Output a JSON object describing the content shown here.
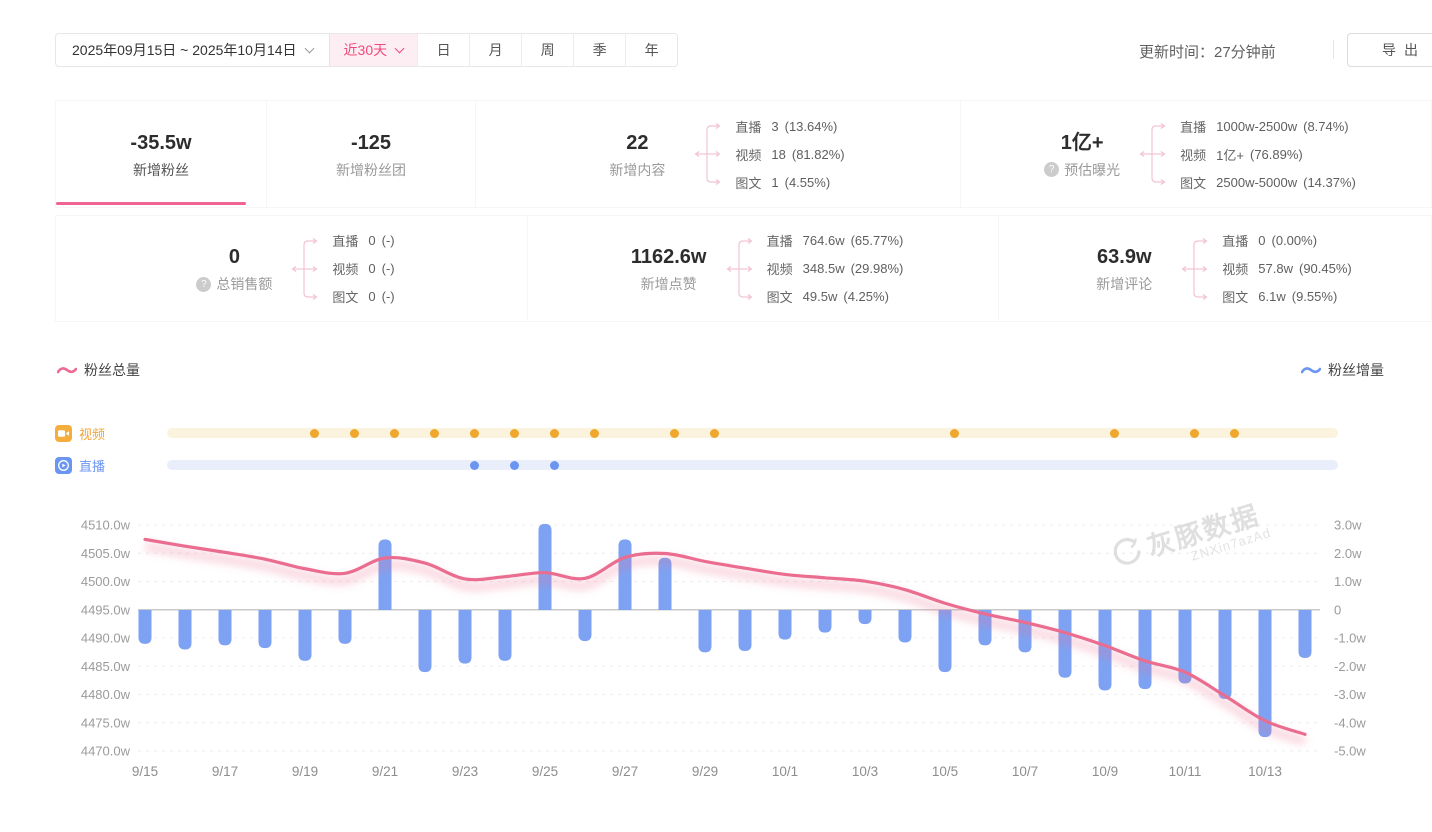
{
  "toolbar": {
    "date_range": "2025年09月15日 ~ 2025年10月14日",
    "quick_range": "近30天",
    "period_tabs": [
      "日",
      "月",
      "周",
      "季",
      "年"
    ],
    "update_time": "更新时间：27分钟前",
    "export_label": "导出"
  },
  "stat_cards": {
    "row1": [
      {
        "value": "-35.5w",
        "label": "新增粉丝",
        "active": true
      },
      {
        "value": "-125",
        "label": "新增粉丝团"
      },
      {
        "value": "22",
        "label": "新增内容",
        "breakdown": [
          {
            "name": "直播",
            "value": "3",
            "pct": "(13.64%)"
          },
          {
            "name": "视频",
            "value": "18",
            "pct": "(81.82%)"
          },
          {
            "name": "图文",
            "value": "1",
            "pct": "(4.55%)"
          }
        ]
      },
      {
        "value": "1亿+",
        "label": "预估曝光",
        "help": true,
        "breakdown": [
          {
            "name": "直播",
            "value": "1000w-2500w",
            "pct": "(8.74%)"
          },
          {
            "name": "视频",
            "value": "1亿+",
            "pct": "(76.89%)"
          },
          {
            "name": "图文",
            "value": "2500w-5000w",
            "pct": "(14.37%)"
          }
        ]
      }
    ],
    "row2": [
      {
        "value": "0",
        "label": "总销售额",
        "help": true,
        "breakdown": [
          {
            "name": "直播",
            "value": "0",
            "pct": "(-)"
          },
          {
            "name": "视频",
            "value": "0",
            "pct": "(-)"
          },
          {
            "name": "图文",
            "value": "0",
            "pct": "(-)"
          }
        ]
      },
      {
        "value": "1162.6w",
        "label": "新增点赞",
        "breakdown": [
          {
            "name": "直播",
            "value": "764.6w",
            "pct": "(65.77%)"
          },
          {
            "name": "视频",
            "value": "348.5w",
            "pct": "(29.98%)"
          },
          {
            "name": "图文",
            "value": "49.5w",
            "pct": "(4.25%)"
          }
        ]
      },
      {
        "value": "63.9w",
        "label": "新增评论",
        "breakdown": [
          {
            "name": "直播",
            "value": "0",
            "pct": "(0.00%)"
          },
          {
            "name": "视频",
            "value": "57.8w",
            "pct": "(90.45%)"
          },
          {
            "name": "图文",
            "value": "6.1w",
            "pct": "(9.55%)"
          }
        ]
      }
    ]
  },
  "legend": {
    "total_fans": "粉丝总量",
    "fans_delta": "粉丝增量"
  },
  "timeline": {
    "video_label": "视频",
    "live_label": "直播",
    "video_color": "#efa72e",
    "live_color": "#6b95f2",
    "video_days": [
      "9/19",
      "9/20",
      "9/21",
      "9/22",
      "9/23",
      "9/24",
      "9/25",
      "9/26",
      "9/28",
      "9/29",
      "10/5",
      "10/9",
      "10/11",
      "10/12"
    ],
    "live_days": [
      "9/23",
      "9/24",
      "9/25"
    ]
  },
  "watermark": {
    "brand": "灰豚数据",
    "code": "ZNXin7azAd"
  },
  "colors": {
    "accent_pink": "#f2497c",
    "line_pink": "#ea6d8f",
    "bar_blue": "#7da2f3",
    "video_orange": "#f0a53a",
    "live_blue": "#6b95f2"
  },
  "chart_data": {
    "type": "line+bar",
    "x": [
      "9/15",
      "9/16",
      "9/17",
      "9/18",
      "9/19",
      "9/20",
      "9/21",
      "9/22",
      "9/23",
      "9/24",
      "9/25",
      "9/26",
      "9/27",
      "9/28",
      "9/29",
      "9/30",
      "10/1",
      "10/2",
      "10/3",
      "10/4",
      "10/5",
      "10/6",
      "10/7",
      "10/8",
      "10/9",
      "10/10",
      "10/11",
      "10/12",
      "10/13",
      "10/14"
    ],
    "x_tick_every": 2,
    "series": [
      {
        "name": "粉丝总量",
        "type": "line",
        "axis": "left",
        "color": "#ea6d8f",
        "values": [
          4507.5,
          4506.3,
          4505.2,
          4504.0,
          4502.3,
          4501.5,
          4504.2,
          4503.3,
          4500.5,
          4500.9,
          4501.6,
          4500.6,
          4504.3,
          4505.0,
          4503.6,
          4502.4,
          4501.3,
          4500.7,
          4500.1,
          4498.6,
          4496.2,
          4494.3,
          4492.8,
          4491.0,
          4488.7,
          4486.0,
          4484.0,
          4479.8,
          4475.4,
          4473.0
        ]
      },
      {
        "name": "粉丝增量",
        "type": "bar",
        "axis": "right",
        "color": "#7da2f3",
        "values": [
          -1.2,
          -1.4,
          -1.25,
          -1.35,
          -1.8,
          -1.2,
          2.5,
          -2.2,
          -1.9,
          -1.8,
          3.05,
          -1.1,
          2.5,
          1.85,
          -1.5,
          -1.45,
          -1.05,
          -0.8,
          -0.5,
          -1.15,
          -2.2,
          -1.25,
          -1.5,
          -2.4,
          -2.85,
          -2.8,
          -2.6,
          -3.15,
          -4.5,
          -1.7
        ]
      }
    ],
    "left_axis": {
      "min": 4470,
      "max": 4510,
      "step": 5,
      "zero_at": 4495,
      "unit": "w",
      "labels": [
        "4510.0w",
        "4505.0w",
        "4500.0w",
        "4495.0w",
        "4490.0w",
        "4485.0w",
        "4480.0w",
        "4475.0w",
        "4470.0w"
      ]
    },
    "right_axis": {
      "min": -5,
      "max": 3,
      "step": 1,
      "unit": "w",
      "labels": [
        "3.0w",
        "2.0w",
        "1.0w",
        "0",
        "-1.0w",
        "-2.0w",
        "-3.0w",
        "-4.0w",
        "-5.0w"
      ]
    },
    "grid": "horizontal-dashed",
    "legend_position": "top-split"
  }
}
